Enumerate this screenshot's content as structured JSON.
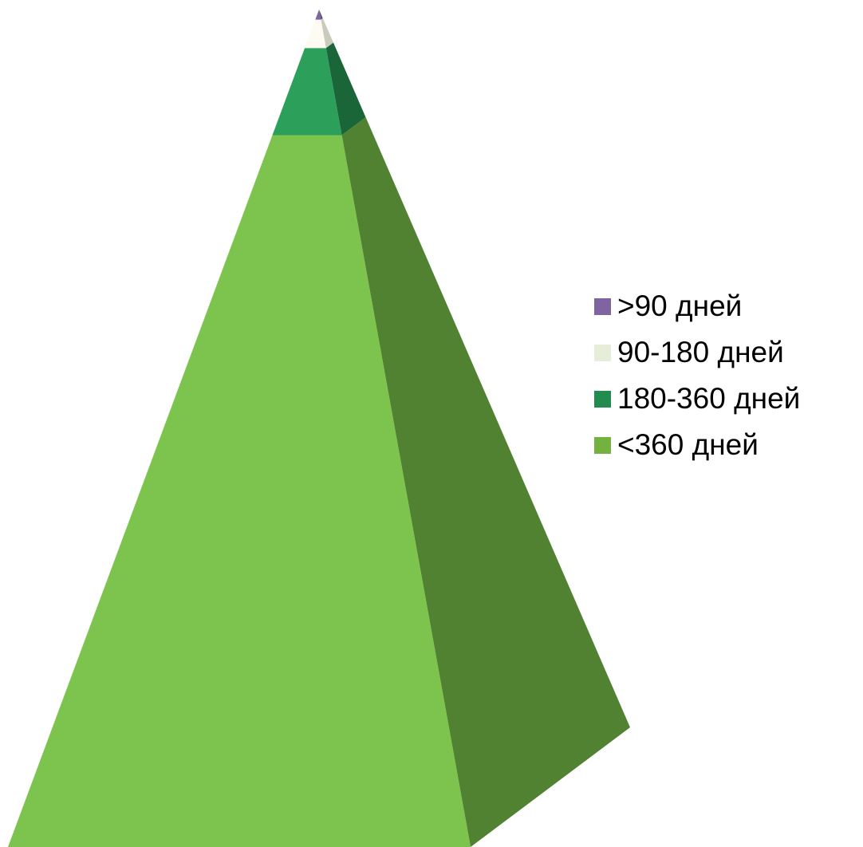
{
  "chart_data": {
    "type": "pyramid",
    "title": "",
    "legend_position": "right",
    "categories": [
      ">90 дней",
      "90-180 дней",
      "180-360 дней",
      "<360 дней"
    ],
    "values": [
      1.2,
      3.4,
      10.4,
      85.0
    ],
    "series": [
      {
        "name": "",
        "values": [
          1.2,
          3.4,
          10.4,
          85.0
        ]
      }
    ],
    "colors": {
      "front": [
        "#8064a2",
        "#fefbf3",
        "#2ca05b",
        "#7dc44e"
      ],
      "side": [
        "#5c4a78",
        "#c9cbbd",
        "#1a6638",
        "#508232"
      ],
      "legend": [
        "#8064a2",
        "#e6eed9",
        "#228b4e",
        "#73b23e"
      ]
    }
  }
}
